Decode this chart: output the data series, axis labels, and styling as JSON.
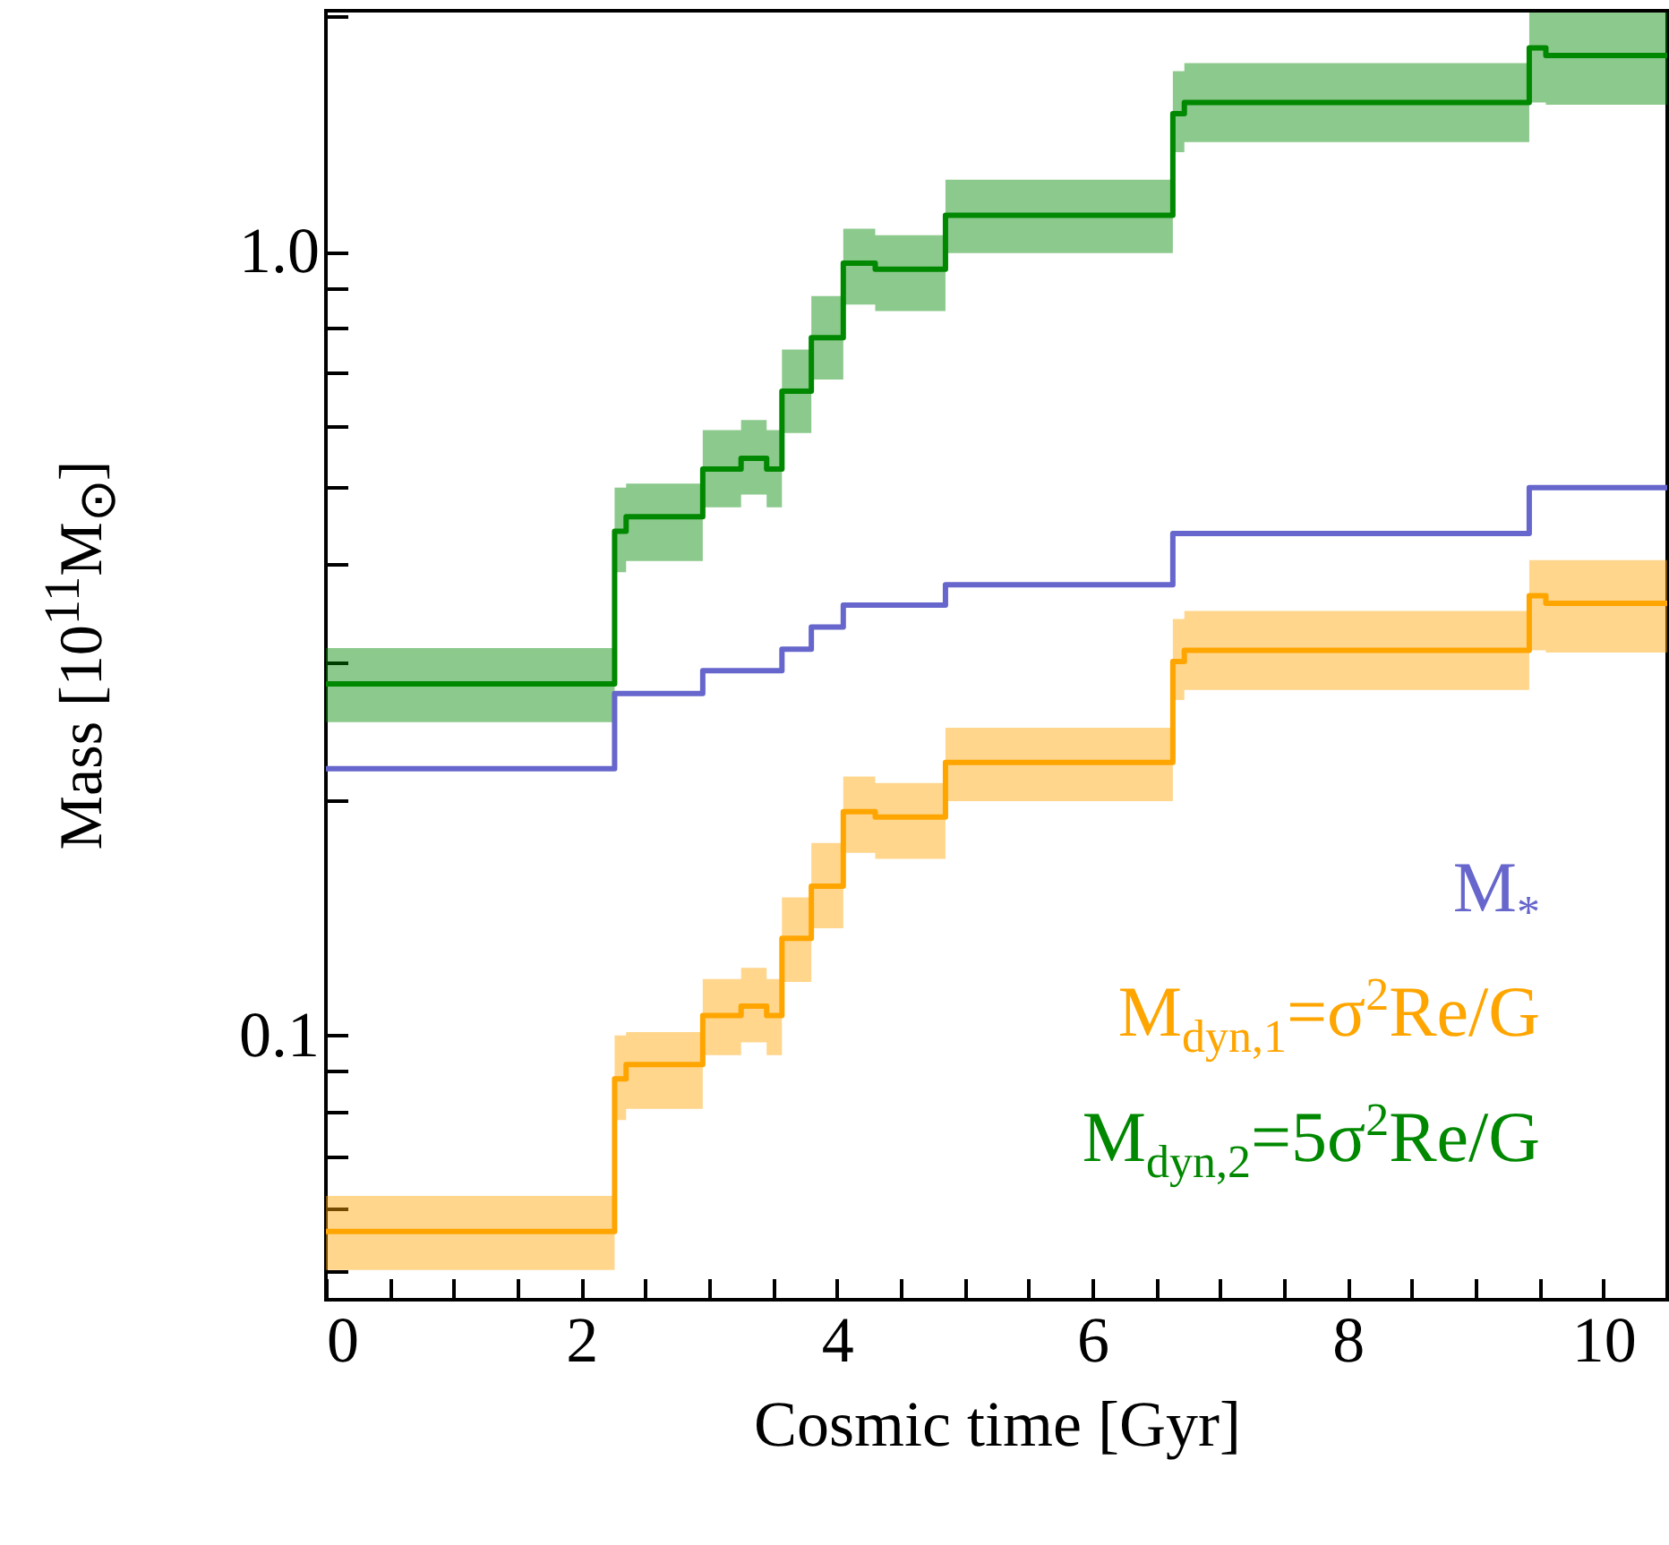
{
  "chart_data": {
    "type": "step",
    "xlabel": "Cosmic time [Gyr]",
    "ylabel": "Mass [10$^{11}$M$_{⊙}$]",
    "log": "y",
    "legend": "bottom right",
    "xlim": [
      0,
      10.5
    ],
    "xticks": [
      0,
      {
        "value": 0.5,
        "label": null
      },
      {
        "value": 1,
        "label": null
      },
      {
        "value": 1.5,
        "label": null
      },
      2,
      {
        "value": 2.5,
        "label": null
      },
      {
        "value": 3,
        "label": null
      },
      {
        "value": 3.5,
        "label": null
      },
      4,
      {
        "value": 4.5,
        "label": null
      },
      {
        "value": 5,
        "label": null
      },
      {
        "value": 5.5,
        "label": null
      },
      6,
      {
        "value": 6.5,
        "label": null
      },
      {
        "value": 7,
        "label": null
      },
      {
        "value": 7.5,
        "label": null
      },
      8,
      {
        "value": 8.5,
        "label": null
      },
      {
        "value": 9,
        "label": null
      },
      {
        "value": 9.5,
        "label": null
      },
      10
    ],
    "ylim": [
      0.046,
      2.03
    ],
    "yticks": [
      {
        "value": 0.05,
        "label": null
      },
      {
        "value": 0.06,
        "label": null
      },
      {
        "value": 0.07,
        "label": null
      },
      {
        "value": 0.08,
        "label": null
      },
      {
        "value": 0.09,
        "label": null
      },
      0.1,
      {
        "value": 0.2,
        "label": null
      },
      {
        "value": 0.3,
        "label": null
      },
      {
        "value": 0.4,
        "label": null
      },
      {
        "value": 0.5,
        "label": null
      },
      {
        "value": 0.6,
        "label": null
      },
      {
        "value": 0.7,
        "label": null
      },
      {
        "value": 0.8,
        "label": null
      },
      {
        "value": 0.9,
        "label": null
      },
      {
        "value": 1,
        "label": "1.0"
      },
      {
        "value": 2,
        "label": null
      }
    ],
    "series": [
      {
        "name": "M$_{*}$",
        "color": "#6666cc",
        "x": [
          0,
          2.26,
          2.95,
          3.57,
          3.8,
          4.05,
          4.85,
          6.63,
          9.42,
          10.5
        ],
        "values": [
          0.219,
          0.273,
          0.292,
          0.311,
          0.332,
          0.354,
          0.376,
          0.437,
          0.5,
          0.5
        ]
      },
      {
        "name": "M$_{dyn,1}$=σ$^{2}$Re/G",
        "color": "#ffa500",
        "x": [
          0,
          2.26,
          2.35,
          2.95,
          3.25,
          3.45,
          3.57,
          3.8,
          4.05,
          4.3,
          4.85,
          6.63,
          6.72,
          9.42,
          9.55,
          10.5
        ],
        "values": [
          0.0562,
          0.088,
          0.0918,
          0.106,
          0.109,
          0.106,
          0.133,
          0.155,
          0.193,
          0.19,
          0.223,
          0.3,
          0.31,
          0.364,
          0.356,
          0.356
        ],
        "lower": [
          0.0502,
          0.078,
          0.0806,
          0.0944,
          0.098,
          0.0944,
          0.117,
          0.137,
          0.171,
          0.168,
          0.199,
          0.268,
          0.276,
          0.31,
          0.308,
          0.308
        ],
        "upper": [
          0.0624,
          0.1,
          0.101,
          0.118,
          0.122,
          0.118,
          0.15,
          0.176,
          0.214,
          0.21,
          0.247,
          0.34,
          0.348,
          0.404,
          0.404,
          0.404
        ]
      },
      {
        "name": "M$_{dyn,2}$=5σ$^{2}$Re/G",
        "color": "#008800",
        "x": [
          0,
          2.26,
          2.35,
          2.95,
          3.25,
          3.45,
          3.57,
          3.8,
          4.05,
          4.3,
          4.85,
          6.63,
          6.72,
          9.42,
          9.55,
          10.5
        ],
        "values": [
          0.281,
          0.44,
          0.459,
          0.528,
          0.545,
          0.528,
          0.664,
          0.777,
          0.967,
          0.95,
          1.113,
          1.5,
          1.55,
          1.82,
          1.78,
          1.78
        ],
        "lower": [
          0.251,
          0.39,
          0.403,
          0.472,
          0.49,
          0.472,
          0.587,
          0.687,
          0.856,
          0.84,
          0.996,
          1.34,
          1.38,
          1.55,
          1.54,
          1.54
        ],
        "upper": [
          0.312,
          0.5,
          0.506,
          0.592,
          0.61,
          0.592,
          0.75,
          0.878,
          1.07,
          1.05,
          1.236,
          1.7,
          1.74,
          2.02,
          2.02,
          2.02
        ]
      }
    ]
  }
}
